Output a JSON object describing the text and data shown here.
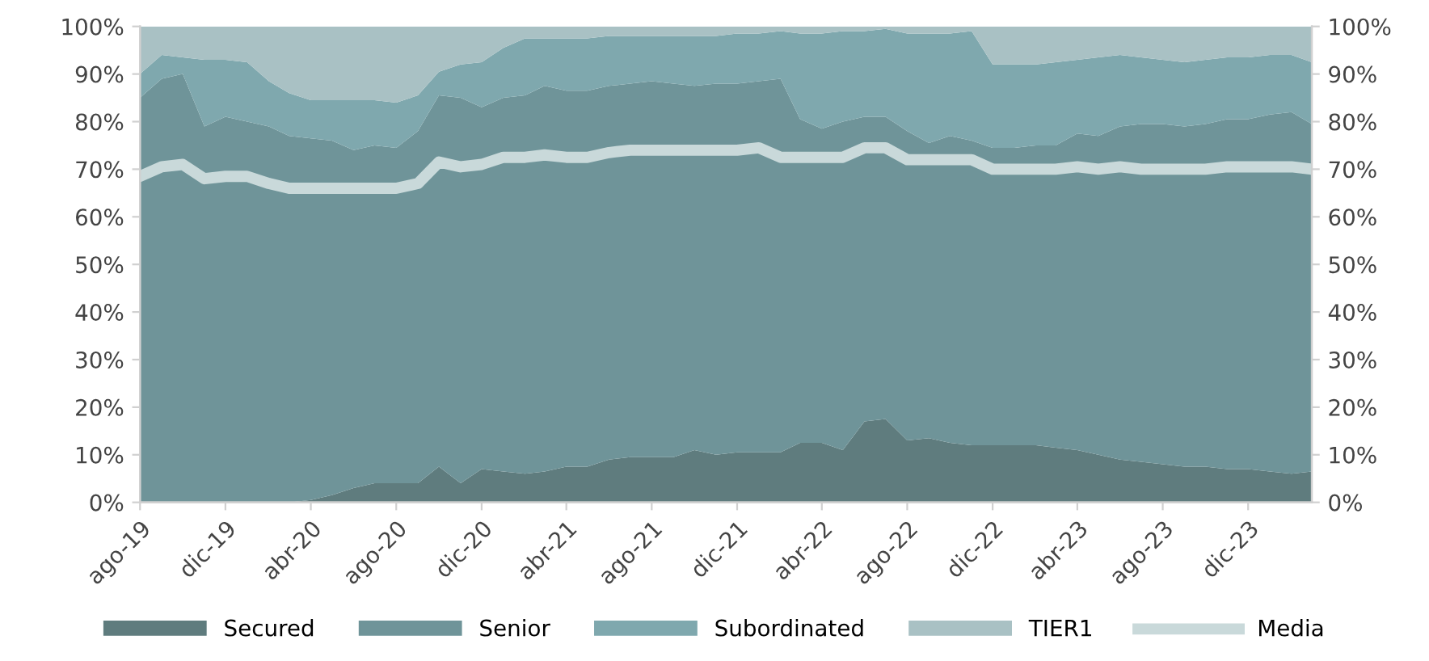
{
  "chart_data": {
    "type": "area",
    "stacked": true,
    "x": [
      "2019-08",
      "2019-09",
      "2019-10",
      "2019-11",
      "2019-12",
      "2020-01",
      "2020-02",
      "2020-03",
      "2020-04",
      "2020-05",
      "2020-06",
      "2020-07",
      "2020-08",
      "2020-09",
      "2020-10",
      "2020-11",
      "2020-12",
      "2021-01",
      "2021-02",
      "2021-03",
      "2021-04",
      "2021-05",
      "2021-06",
      "2021-07",
      "2021-08",
      "2021-09",
      "2021-10",
      "2021-11",
      "2021-12",
      "2022-01",
      "2022-02",
      "2022-03",
      "2022-04",
      "2022-05",
      "2022-06",
      "2022-07",
      "2022-08",
      "2022-09",
      "2022-10",
      "2022-11",
      "2022-12",
      "2023-01",
      "2023-02",
      "2023-03",
      "2023-04",
      "2023-05",
      "2023-06",
      "2023-07",
      "2023-08",
      "2023-09",
      "2023-10",
      "2023-11",
      "2023-12",
      "2024-01",
      "2024-02",
      "2024-03"
    ],
    "series": [
      {
        "name": "Secured",
        "color": "#5f7c7e",
        "values": [
          0,
          0,
          0,
          0,
          0,
          0,
          0,
          0,
          0.5,
          1.5,
          3,
          4,
          4,
          4,
          7.5,
          4,
          7,
          6.5,
          6,
          6.5,
          7.5,
          7.5,
          9,
          9.5,
          9.5,
          9.5,
          11,
          10,
          10.5,
          10.5,
          10.5,
          12.5,
          12.5,
          11,
          17,
          17.5,
          13,
          13.5,
          12.5,
          12,
          12,
          12,
          12,
          11.5,
          11,
          10,
          9,
          8.5,
          8,
          7.5,
          7.5,
          7,
          7,
          6.5,
          6,
          6.5
        ]
      },
      {
        "name": "Senior",
        "color": "#6f9499",
        "values": [
          85,
          89,
          90,
          79,
          81,
          80,
          79,
          77,
          76,
          74.5,
          71,
          71,
          70.5,
          74,
          78,
          81,
          76,
          78.5,
          79.5,
          81,
          79,
          79,
          78.5,
          78.5,
          79,
          78.5,
          76.5,
          78,
          77.5,
          78,
          78.5,
          68,
          66,
          69,
          64,
          63.5,
          65,
          62,
          64.5,
          64,
          62.5,
          62.5,
          63,
          63.5,
          66.5,
          67,
          70,
          71,
          71.5,
          71.5,
          72,
          73.5,
          73.5,
          75,
          76,
          73
        ]
      },
      {
        "name": "Subordinated",
        "color": "#7fa8ae",
        "values": [
          5,
          5,
          3.5,
          14,
          12,
          12.5,
          9.5,
          9,
          8,
          8.5,
          10.5,
          9.5,
          9.5,
          7.5,
          5,
          7,
          9.5,
          10.5,
          12,
          10,
          11,
          11,
          10.5,
          10,
          9.5,
          10,
          10.5,
          10,
          10.5,
          10,
          10,
          18,
          20,
          19,
          18,
          18.5,
          20.5,
          23,
          21.5,
          23,
          17.5,
          17.5,
          17,
          17.5,
          15.5,
          16.5,
          15,
          14,
          13.5,
          13.5,
          13.5,
          13,
          13,
          12.5,
          12,
          13
        ]
      },
      {
        "name": "TIER1",
        "color": "#a9c1c4",
        "values": [
          10,
          6,
          6.5,
          7,
          7,
          7.5,
          11.5,
          14,
          15.5,
          15.5,
          15.5,
          15.5,
          16,
          14.5,
          9.5,
          8,
          7.5,
          4.5,
          2.5,
          2.5,
          2.5,
          2.5,
          2,
          2,
          2,
          2,
          2,
          2,
          1.5,
          1.5,
          1,
          1.5,
          1.5,
          1,
          1,
          0.5,
          1.5,
          1.5,
          1.5,
          1,
          8,
          8,
          8,
          7.5,
          7,
          6.5,
          6,
          6.5,
          7,
          7.5,
          7,
          6.5,
          6.5,
          6,
          6,
          7.5
        ]
      },
      {
        "name": "Media",
        "type": "line",
        "color": "#c9d9da",
        "values": [
          68.5,
          70.5,
          71,
          68,
          68.5,
          68.5,
          67,
          66,
          66,
          66,
          66,
          66,
          66,
          67,
          71.5,
          70.5,
          71,
          72.5,
          72.5,
          73,
          72.5,
          72.5,
          73.5,
          74,
          74,
          74,
          74,
          74,
          74,
          74.5,
          72.5,
          72.5,
          72.5,
          72.5,
          74.5,
          74.5,
          72,
          72,
          72,
          72,
          70,
          70,
          70,
          70,
          70.5,
          70,
          70.5,
          70,
          70,
          70,
          70,
          70.5,
          70.5,
          70.5,
          70.5,
          70
        ]
      }
    ],
    "xlim": [
      "2019-08",
      "2024-03"
    ],
    "xticks": [
      {
        "value": "2019-08",
        "label": "ago-19"
      },
      {
        "value": "2019-12",
        "label": "dic-19"
      },
      {
        "value": "2020-04",
        "label": "abr-20"
      },
      {
        "value": "2020-08",
        "label": "ago-20"
      },
      {
        "value": "2020-12",
        "label": "dic-20"
      },
      {
        "value": "2021-04",
        "label": "abr-21"
      },
      {
        "value": "2021-08",
        "label": "ago-21"
      },
      {
        "value": "2021-12",
        "label": "dic-21"
      },
      {
        "value": "2022-04",
        "label": "abr-22"
      },
      {
        "value": "2022-08",
        "label": "ago-22"
      },
      {
        "value": "2022-12",
        "label": "dic-22"
      },
      {
        "value": "2023-04",
        "label": "abr-23"
      },
      {
        "value": "2023-08",
        "label": "ago-23"
      },
      {
        "value": "2023-12",
        "label": "dic-23"
      }
    ],
    "ylim": [
      0,
      100
    ],
    "yticks": [
      {
        "value": 0,
        "label": "0%"
      },
      {
        "value": 10,
        "label": "10%"
      },
      {
        "value": 20,
        "label": "20%"
      },
      {
        "value": 30,
        "label": "30%"
      },
      {
        "value": 40,
        "label": "40%"
      },
      {
        "value": 50,
        "label": "50%"
      },
      {
        "value": 60,
        "label": "60%"
      },
      {
        "value": 70,
        "label": "70%"
      },
      {
        "value": 80,
        "label": "80%"
      },
      {
        "value": 90,
        "label": "90%"
      },
      {
        "value": 100,
        "label": "100%"
      }
    ],
    "y2lim": [
      0,
      100
    ],
    "y2ticks": [
      {
        "value": 0,
        "label": "0%"
      },
      {
        "value": 10,
        "label": "10%"
      },
      {
        "value": 20,
        "label": "20%"
      },
      {
        "value": 30,
        "label": "30%"
      },
      {
        "value": 40,
        "label": "40%"
      },
      {
        "value": 50,
        "label": "50%"
      },
      {
        "value": 60,
        "label": "60%"
      },
      {
        "value": 70,
        "label": "70%"
      },
      {
        "value": 80,
        "label": "80%"
      },
      {
        "value": 90,
        "label": "90%"
      },
      {
        "value": 100,
        "label": "100%"
      }
    ],
    "grid": false,
    "legend": "bottom"
  }
}
